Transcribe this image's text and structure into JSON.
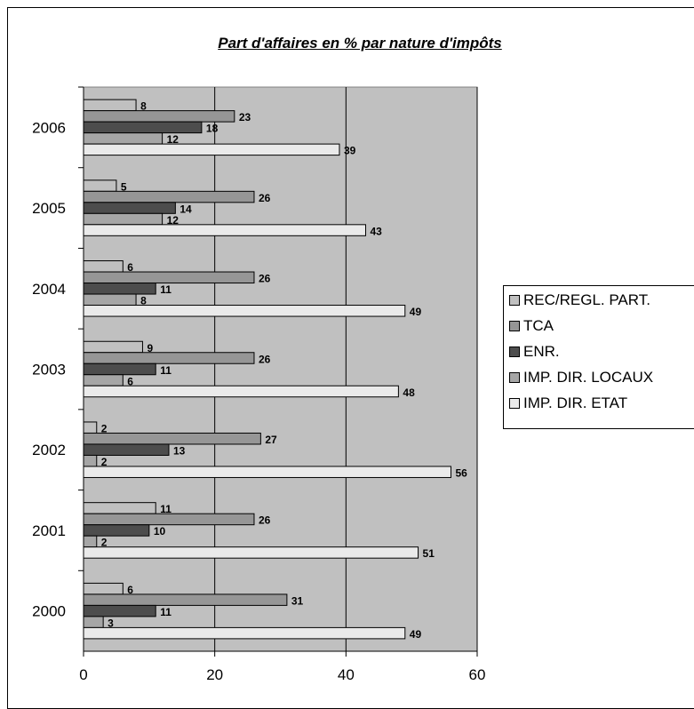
{
  "chart_data": {
    "type": "bar",
    "orientation": "horizontal",
    "title": "Part d'affaires en % par nature d'impôts",
    "categories": [
      "2000",
      "2001",
      "2002",
      "2003",
      "2004",
      "2005",
      "2006"
    ],
    "xlim": [
      0,
      60
    ],
    "xticks": [
      "0",
      "20",
      "40",
      "60"
    ],
    "grid": true,
    "legend_position": "right",
    "series": [
      {
        "name": "REC/REGL. PART.",
        "color": "#c0c0c0",
        "values": [
          6,
          11,
          2,
          9,
          6,
          5,
          8
        ]
      },
      {
        "name": "TCA",
        "color": "#969696",
        "values": [
          31,
          26,
          27,
          26,
          26,
          26,
          23
        ]
      },
      {
        "name": "ENR.",
        "color": "#4d4d4d",
        "values": [
          11,
          10,
          13,
          11,
          11,
          14,
          18
        ]
      },
      {
        "name": "IMP. DIR. LOCAUX",
        "color": "#a6a6a6",
        "values": [
          3,
          2,
          2,
          6,
          8,
          12,
          12
        ]
      },
      {
        "name": "IMP. DIR. ETAT",
        "color": "#eaeaea",
        "values": [
          49,
          51,
          56,
          48,
          49,
          43,
          39
        ]
      }
    ]
  }
}
